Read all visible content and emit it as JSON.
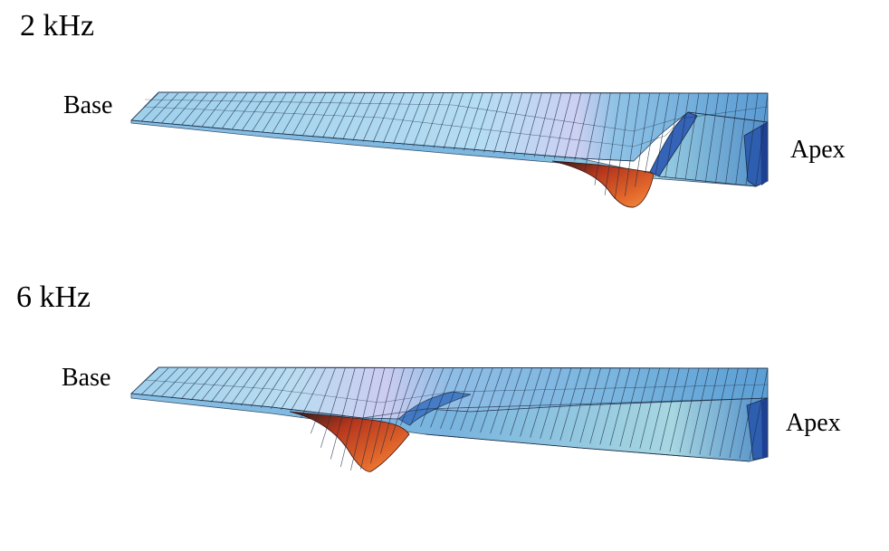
{
  "panels": [
    {
      "frequency_label": "2 kHz",
      "base_label": "Base",
      "apex_label": "Apex"
    },
    {
      "frequency_label": "6 kHz",
      "base_label": "Base",
      "apex_label": "Apex"
    }
  ],
  "colors": {
    "membrane_light": "#a9d6ef",
    "membrane_mid": "#6fb0db",
    "membrane_dark": "#2f6fb7",
    "peak_pale": "#c7c7ef",
    "trough_red": "#c23b1f",
    "trough_orange": "#e0642a",
    "grid_line": "#1c2d45"
  }
}
